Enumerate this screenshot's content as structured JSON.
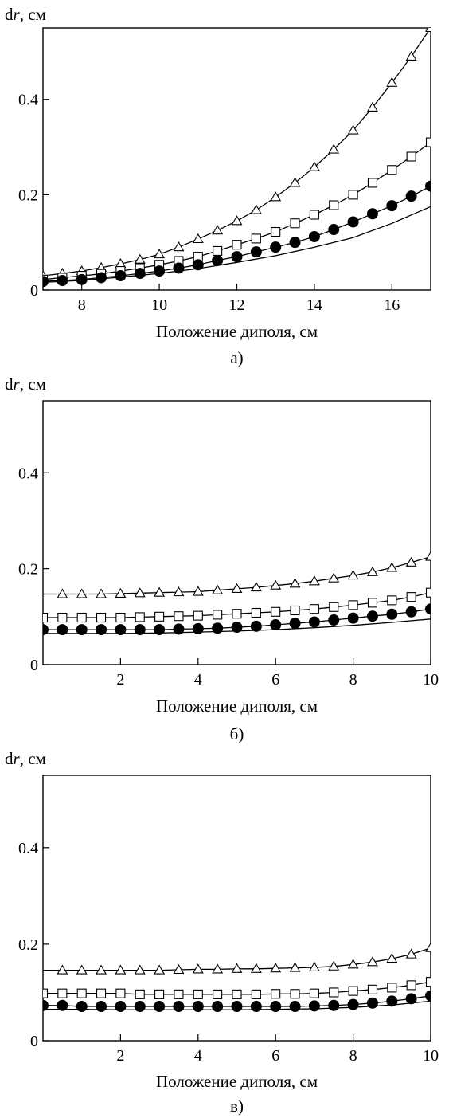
{
  "chart_data": [
    {
      "type": "line",
      "panel_label": "а)",
      "xlabel": "Положение диполя, см",
      "ylabel_main": "d",
      "ylabel_italic": "r",
      "ylabel_unit": ", см",
      "xlim": [
        7,
        17
      ],
      "ylim": [
        0,
        0.55
      ],
      "xticks": [
        8,
        10,
        12,
        14,
        16
      ],
      "yticks": [
        0,
        0.2,
        0.4
      ],
      "ytick_labels": [
        "0",
        "0.2",
        "0.4"
      ],
      "series": [
        {
          "marker": "triangle",
          "x": [
            7,
            7.5,
            8,
            8.5,
            9,
            9.5,
            10,
            10.5,
            11,
            11.5,
            12,
            12.5,
            13,
            13.5,
            14,
            14.5,
            15,
            15.5,
            16,
            16.5,
            17
          ],
          "y": [
            0.03,
            0.035,
            0.04,
            0.047,
            0.055,
            0.064,
            0.075,
            0.09,
            0.107,
            0.125,
            0.145,
            0.168,
            0.195,
            0.225,
            0.258,
            0.295,
            0.335,
            0.383,
            0.435,
            0.49,
            0.55
          ]
        },
        {
          "marker": "square",
          "x": [
            7,
            7.5,
            8,
            8.5,
            9,
            9.5,
            10,
            10.5,
            11,
            11.5,
            12,
            12.5,
            13,
            13.5,
            14,
            14.5,
            15,
            15.5,
            16,
            16.5,
            17
          ],
          "y": [
            0.022,
            0.026,
            0.03,
            0.034,
            0.04,
            0.046,
            0.053,
            0.061,
            0.07,
            0.082,
            0.095,
            0.108,
            0.122,
            0.14,
            0.158,
            0.178,
            0.2,
            0.225,
            0.252,
            0.28,
            0.31
          ]
        },
        {
          "marker": "circle",
          "x": [
            7,
            7.5,
            8,
            8.5,
            9,
            9.5,
            10,
            10.5,
            11,
            11.5,
            12,
            12.5,
            13,
            13.5,
            14,
            14.5,
            15,
            15.5,
            16,
            16.5,
            17
          ],
          "y": [
            0.018,
            0.02,
            0.022,
            0.026,
            0.03,
            0.035,
            0.04,
            0.046,
            0.053,
            0.062,
            0.07,
            0.08,
            0.09,
            0.1,
            0.112,
            0.127,
            0.143,
            0.16,
            0.177,
            0.197,
            0.218
          ]
        },
        {
          "marker": "none",
          "x": [
            7,
            8,
            9,
            10,
            11,
            12,
            13,
            14,
            15,
            16,
            17
          ],
          "y": [
            0.016,
            0.02,
            0.027,
            0.035,
            0.045,
            0.058,
            0.072,
            0.09,
            0.11,
            0.14,
            0.175
          ]
        }
      ]
    },
    {
      "type": "line",
      "panel_label": "б)",
      "xlabel": "Положение диполя, см",
      "ylabel_main": "d",
      "ylabel_italic": "r",
      "ylabel_unit": ", см",
      "xlim": [
        0,
        10
      ],
      "ylim": [
        0,
        0.55
      ],
      "xticks": [
        2,
        4,
        6,
        8,
        10
      ],
      "yticks": [
        0,
        0.2,
        0.4
      ],
      "ytick_labels": [
        "0",
        "0.2",
        "0.4"
      ],
      "series": [
        {
          "marker": "triangle",
          "x": [
            0.5,
            1,
            1.5,
            2,
            2.5,
            3,
            3.5,
            4,
            4.5,
            5,
            5.5,
            6,
            6.5,
            7,
            7.5,
            8,
            8.5,
            9,
            9.5,
            10
          ],
          "y": [
            0.147,
            0.147,
            0.147,
            0.148,
            0.149,
            0.15,
            0.151,
            0.152,
            0.155,
            0.158,
            0.161,
            0.165,
            0.169,
            0.174,
            0.18,
            0.186,
            0.193,
            0.202,
            0.213,
            0.225
          ],
          "line_x": [
            0,
            10
          ],
          "line_start_y": 0.147
        },
        {
          "marker": "square",
          "x": [
            0,
            0.5,
            1,
            1.5,
            2,
            2.5,
            3,
            3.5,
            4,
            4.5,
            5,
            5.5,
            6,
            6.5,
            7,
            7.5,
            8,
            8.5,
            9,
            9.5,
            10
          ],
          "y": [
            0.098,
            0.098,
            0.098,
            0.098,
            0.098,
            0.099,
            0.1,
            0.101,
            0.102,
            0.104,
            0.106,
            0.108,
            0.11,
            0.113,
            0.116,
            0.12,
            0.124,
            0.129,
            0.134,
            0.141,
            0.15
          ]
        },
        {
          "marker": "circle",
          "x": [
            0,
            0.5,
            1,
            1.5,
            2,
            2.5,
            3,
            3.5,
            4,
            4.5,
            5,
            5.5,
            6,
            6.5,
            7,
            7.5,
            8,
            8.5,
            9,
            9.5,
            10
          ],
          "y": [
            0.073,
            0.073,
            0.073,
            0.073,
            0.073,
            0.073,
            0.073,
            0.074,
            0.075,
            0.076,
            0.078,
            0.08,
            0.083,
            0.086,
            0.089,
            0.093,
            0.097,
            0.101,
            0.105,
            0.11,
            0.116
          ]
        },
        {
          "marker": "none",
          "x": [
            0,
            1,
            2,
            3,
            4,
            5,
            6,
            7,
            8,
            9,
            10
          ],
          "y": [
            0.065,
            0.065,
            0.065,
            0.066,
            0.068,
            0.07,
            0.073,
            0.077,
            0.082,
            0.088,
            0.095
          ]
        }
      ]
    },
    {
      "type": "line",
      "panel_label": "в)",
      "xlabel": "Положение диполя, см",
      "ylabel_main": "d",
      "ylabel_italic": "r",
      "ylabel_unit": ", см",
      "xlim": [
        0,
        10
      ],
      "ylim": [
        0,
        0.55
      ],
      "xticks": [
        2,
        4,
        6,
        8,
        10
      ],
      "yticks": [
        0,
        0.2,
        0.4
      ],
      "ytick_labels": [
        "0",
        "0.2",
        "0.4"
      ],
      "series": [
        {
          "marker": "triangle",
          "x": [
            0.5,
            1,
            1.5,
            2,
            2.5,
            3,
            3.5,
            4,
            4.5,
            5,
            5.5,
            6,
            6.5,
            7,
            7.5,
            8,
            8.5,
            9,
            9.5,
            10
          ],
          "y": [
            0.146,
            0.146,
            0.146,
            0.146,
            0.146,
            0.146,
            0.147,
            0.148,
            0.148,
            0.149,
            0.149,
            0.15,
            0.151,
            0.152,
            0.154,
            0.158,
            0.163,
            0.17,
            0.179,
            0.192
          ],
          "line_x": [
            0,
            10
          ],
          "line_start_y": 0.146
        },
        {
          "marker": "square",
          "x": [
            0,
            0.5,
            1,
            1.5,
            2,
            2.5,
            3,
            3.5,
            4,
            4.5,
            5,
            5.5,
            6,
            6.5,
            7,
            7.5,
            8,
            8.5,
            9,
            9.5,
            10
          ],
          "y": [
            0.098,
            0.098,
            0.098,
            0.098,
            0.098,
            0.096,
            0.096,
            0.096,
            0.096,
            0.096,
            0.096,
            0.096,
            0.097,
            0.097,
            0.098,
            0.1,
            0.103,
            0.106,
            0.11,
            0.115,
            0.122
          ]
        },
        {
          "marker": "circle",
          "x": [
            0,
            0.5,
            1,
            1.5,
            2,
            2.5,
            3,
            3.5,
            4,
            4.5,
            5,
            5.5,
            6,
            6.5,
            7,
            7.5,
            8,
            8.5,
            9,
            9.5,
            10
          ],
          "y": [
            0.073,
            0.073,
            0.071,
            0.071,
            0.071,
            0.071,
            0.071,
            0.071,
            0.071,
            0.071,
            0.071,
            0.071,
            0.071,
            0.071,
            0.072,
            0.073,
            0.075,
            0.078,
            0.082,
            0.087,
            0.093
          ]
        },
        {
          "marker": "none",
          "x": [
            0,
            1,
            2,
            3,
            4,
            5,
            6,
            7,
            8,
            9,
            10
          ],
          "y": [
            0.065,
            0.065,
            0.064,
            0.064,
            0.064,
            0.064,
            0.065,
            0.066,
            0.069,
            0.074,
            0.082
          ]
        }
      ]
    }
  ]
}
